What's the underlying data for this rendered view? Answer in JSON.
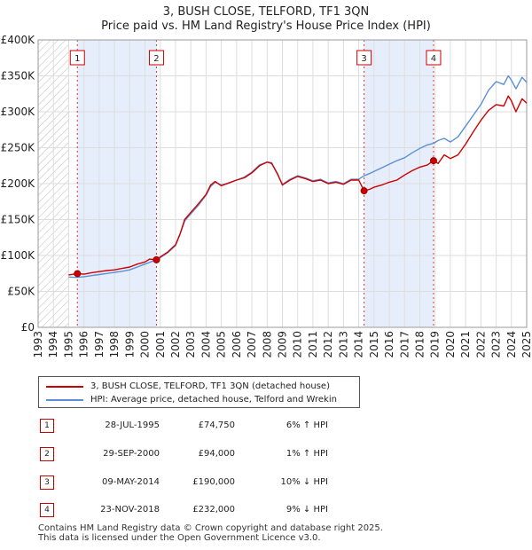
{
  "title_line1": "3, BUSH CLOSE, TELFORD, TF1 3QN",
  "title_line2": "Price paid vs. HM Land Registry's House Price Index (HPI)",
  "chart_data": {
    "type": "line",
    "xlim": [
      1993,
      2025
    ],
    "ylim": [
      0,
      400000
    ],
    "x_ticks": [
      "1993",
      "1994",
      "1995",
      "1996",
      "1997",
      "1998",
      "1999",
      "2000",
      "2001",
      "2002",
      "2003",
      "2004",
      "2005",
      "2006",
      "2007",
      "2008",
      "2009",
      "2010",
      "2011",
      "2012",
      "2013",
      "2014",
      "2015",
      "2016",
      "2017",
      "2018",
      "2019",
      "2020",
      "2021",
      "2022",
      "2023",
      "2024",
      "2025"
    ],
    "y_ticks": [
      {
        "value": 0,
        "label": "£0"
      },
      {
        "value": 50000,
        "label": "£50K"
      },
      {
        "value": 100000,
        "label": "£100K"
      },
      {
        "value": 150000,
        "label": "£150K"
      },
      {
        "value": 200000,
        "label": "£200K"
      },
      {
        "value": 250000,
        "label": "£250K"
      },
      {
        "value": 300000,
        "label": "£300K"
      },
      {
        "value": 350000,
        "label": "£350K"
      },
      {
        "value": 400000,
        "label": "£400K"
      }
    ],
    "grid": true,
    "hatched_before": 1995.0,
    "shaded_periods": [
      [
        1995.57,
        2000.75
      ],
      [
        2014.35,
        2018.9
      ]
    ],
    "series": [
      {
        "name": "3, BUSH CLOSE, TELFORD, TF1 3QN (detached house)",
        "color": "#cc0000",
        "points": [
          [
            1995.0,
            73000
          ],
          [
            1995.57,
            74750
          ],
          [
            1996.0,
            74000
          ],
          [
            1996.5,
            76000
          ],
          [
            1997.0,
            77500
          ],
          [
            1997.5,
            79000
          ],
          [
            1998.0,
            80000
          ],
          [
            1998.5,
            82000
          ],
          [
            1999.0,
            84000
          ],
          [
            1999.5,
            88000
          ],
          [
            2000.0,
            91000
          ],
          [
            2000.3,
            95000
          ],
          [
            2000.75,
            94000
          ],
          [
            2001.0,
            98000
          ],
          [
            2001.5,
            105000
          ],
          [
            2002.0,
            115000
          ],
          [
            2002.3,
            130000
          ],
          [
            2002.6,
            150000
          ],
          [
            2003.0,
            160000
          ],
          [
            2003.5,
            172000
          ],
          [
            2004.0,
            185000
          ],
          [
            2004.3,
            198000
          ],
          [
            2004.6,
            203000
          ],
          [
            2005.0,
            197000
          ],
          [
            2005.5,
            201000
          ],
          [
            2006.0,
            205000
          ],
          [
            2006.5,
            208000
          ],
          [
            2007.0,
            215000
          ],
          [
            2007.5,
            225000
          ],
          [
            2008.0,
            230000
          ],
          [
            2008.3,
            228000
          ],
          [
            2008.7,
            213000
          ],
          [
            2009.0,
            198000
          ],
          [
            2009.5,
            205000
          ],
          [
            2010.0,
            210000
          ],
          [
            2010.5,
            207000
          ],
          [
            2011.0,
            203000
          ],
          [
            2011.5,
            205000
          ],
          [
            2012.0,
            200000
          ],
          [
            2012.5,
            202000
          ],
          [
            2013.0,
            199000
          ],
          [
            2013.5,
            205000
          ],
          [
            2014.0,
            205000
          ],
          [
            2014.35,
            190000
          ],
          [
            2014.7,
            192000
          ],
          [
            2015.0,
            195000
          ],
          [
            2015.5,
            198000
          ],
          [
            2016.0,
            202000
          ],
          [
            2016.5,
            205000
          ],
          [
            2017.0,
            212000
          ],
          [
            2017.5,
            218000
          ],
          [
            2018.0,
            223000
          ],
          [
            2018.5,
            226000
          ],
          [
            2018.9,
            232000
          ],
          [
            2019.2,
            228000
          ],
          [
            2019.6,
            240000
          ],
          [
            2020.0,
            235000
          ],
          [
            2020.5,
            240000
          ],
          [
            2021.0,
            255000
          ],
          [
            2021.5,
            272000
          ],
          [
            2022.0,
            288000
          ],
          [
            2022.5,
            302000
          ],
          [
            2023.0,
            310000
          ],
          [
            2023.5,
            308000
          ],
          [
            2023.8,
            322000
          ],
          [
            2024.0,
            315000
          ],
          [
            2024.3,
            300000
          ],
          [
            2024.7,
            318000
          ],
          [
            2025.0,
            312000
          ]
        ]
      },
      {
        "name": "HPI: Average price, detached house, Telford and Wrekin",
        "color": "#5b8fd6",
        "points": [
          [
            1995.0,
            70000
          ],
          [
            1995.5,
            69500
          ],
          [
            1996.0,
            70500
          ],
          [
            1996.5,
            72000
          ],
          [
            1997.0,
            73500
          ],
          [
            1997.5,
            75000
          ],
          [
            1998.0,
            76500
          ],
          [
            1998.5,
            78000
          ],
          [
            1999.0,
            80000
          ],
          [
            1999.5,
            84000
          ],
          [
            2000.0,
            88000
          ],
          [
            2000.5,
            92000
          ],
          [
            2000.75,
            93000
          ],
          [
            2001.0,
            97000
          ],
          [
            2001.5,
            104000
          ],
          [
            2002.0,
            114000
          ],
          [
            2002.3,
            130000
          ],
          [
            2002.6,
            148000
          ],
          [
            2003.0,
            158000
          ],
          [
            2003.5,
            170000
          ],
          [
            2004.0,
            184000
          ],
          [
            2004.3,
            196000
          ],
          [
            2004.6,
            202000
          ],
          [
            2005.0,
            198000
          ],
          [
            2005.5,
            201000
          ],
          [
            2006.0,
            205000
          ],
          [
            2006.5,
            209000
          ],
          [
            2007.0,
            216000
          ],
          [
            2007.5,
            226000
          ],
          [
            2008.0,
            230000
          ],
          [
            2008.3,
            229000
          ],
          [
            2008.7,
            212000
          ],
          [
            2009.0,
            199000
          ],
          [
            2009.5,
            206000
          ],
          [
            2010.0,
            211000
          ],
          [
            2010.5,
            208000
          ],
          [
            2011.0,
            204000
          ],
          [
            2011.5,
            206000
          ],
          [
            2012.0,
            201000
          ],
          [
            2012.5,
            203000
          ],
          [
            2013.0,
            200000
          ],
          [
            2013.5,
            206000
          ],
          [
            2014.0,
            206000
          ],
          [
            2014.35,
            211000
          ],
          [
            2014.7,
            214000
          ],
          [
            2015.0,
            217000
          ],
          [
            2015.5,
            222000
          ],
          [
            2016.0,
            227000
          ],
          [
            2016.5,
            232000
          ],
          [
            2017.0,
            236000
          ],
          [
            2017.5,
            243000
          ],
          [
            2018.0,
            249000
          ],
          [
            2018.5,
            254000
          ],
          [
            2018.9,
            256000
          ],
          [
            2019.2,
            260000
          ],
          [
            2019.6,
            263000
          ],
          [
            2020.0,
            258000
          ],
          [
            2020.5,
            265000
          ],
          [
            2021.0,
            280000
          ],
          [
            2021.5,
            295000
          ],
          [
            2022.0,
            310000
          ],
          [
            2022.5,
            330000
          ],
          [
            2023.0,
            342000
          ],
          [
            2023.5,
            338000
          ],
          [
            2023.8,
            350000
          ],
          [
            2024.0,
            344000
          ],
          [
            2024.3,
            332000
          ],
          [
            2024.7,
            348000
          ],
          [
            2025.0,
            341000
          ]
        ]
      }
    ],
    "sales": [
      {
        "num": "1",
        "x": 1995.57,
        "price": 74750
      },
      {
        "num": "2",
        "x": 2000.75,
        "price": 94000
      },
      {
        "num": "3",
        "x": 2014.35,
        "price": 190000
      },
      {
        "num": "4",
        "x": 2018.9,
        "price": 232000
      }
    ]
  },
  "legend": {
    "series1_label": "3, BUSH CLOSE, TELFORD, TF1 3QN (detached house)",
    "series2_label": "HPI: Average price, detached house, Telford and Wrekin"
  },
  "sales_table": [
    {
      "num": "1",
      "date": "28-JUL-1995",
      "price": "£74,750",
      "hpi": "6% ↑ HPI"
    },
    {
      "num": "2",
      "date": "29-SEP-2000",
      "price": "£94,000",
      "hpi": "1% ↑ HPI"
    },
    {
      "num": "3",
      "date": "09-MAY-2014",
      "price": "£190,000",
      "hpi": "10% ↓ HPI"
    },
    {
      "num": "4",
      "date": "23-NOV-2018",
      "price": "£232,000",
      "hpi": "9% ↓ HPI"
    }
  ],
  "footer_line1": "Contains HM Land Registry data © Crown copyright and database right 2025.",
  "footer_line2": "This data is licensed under the Open Government Licence v3.0.",
  "colors": {
    "property": "#cc0000",
    "hpi": "#5b8fd6",
    "shade": "#e6eefb",
    "marker_border": "#cc0000"
  }
}
